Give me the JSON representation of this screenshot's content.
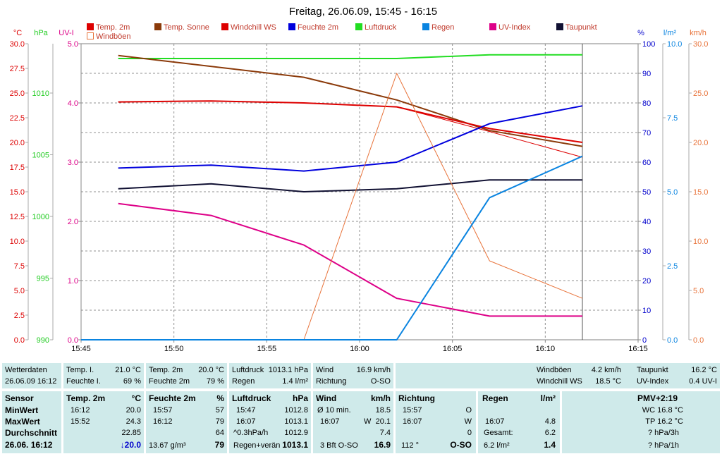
{
  "chart_data": {
    "type": "line",
    "title": "Freitag, 26.06.09, 15:45 - 16:15",
    "x_ticks": [
      "15:45",
      "15:50",
      "15:55",
      "16:00",
      "16:05",
      "16:10",
      "16:15"
    ],
    "x_range": [
      "15:45",
      "16:15"
    ],
    "grid": true,
    "legend": [
      {
        "name": "Temp. 2m",
        "color": "#dd0000",
        "style": "box"
      },
      {
        "name": "Temp. Sonne",
        "color": "#8b3a0a",
        "style": "box"
      },
      {
        "name": "Windchill WS",
        "color": "#dd0000",
        "style": "box"
      },
      {
        "name": "Feuchte 2m",
        "color": "#0000dd",
        "style": "box"
      },
      {
        "name": "Luftdruck",
        "color": "#22dd22",
        "style": "box"
      },
      {
        "name": "Regen",
        "color": "#0a84e0",
        "style": "box"
      },
      {
        "name": "UV-Index",
        "color": "#dd0088",
        "style": "box"
      },
      {
        "name": "Taupunkt",
        "color": "#111133",
        "style": "box"
      },
      {
        "name": "Windböen",
        "color": "#e8733a",
        "style": "outline"
      }
    ],
    "axes": {
      "temp": {
        "label": "°C",
        "color": "#dd0000",
        "min": 0,
        "max": 30,
        "ticks": [
          "30.0",
          "27.5",
          "25.0",
          "22.5",
          "20.0",
          "17.5",
          "15.0",
          "12.5",
          "10.0",
          "7.5",
          "5.0",
          "2.5",
          "0.0"
        ]
      },
      "pressure": {
        "label": "hPa",
        "color": "#22cc22",
        "min": 990,
        "max": 1014,
        "ticks": [
          "1010",
          "1005",
          "1000",
          "995",
          "990"
        ]
      },
      "uv": {
        "label": "UV-I",
        "color": "#dd0088",
        "min": 0,
        "max": 5,
        "ticks": [
          "5.0",
          "4.0",
          "3.0",
          "2.0",
          "1.0",
          "0.0"
        ]
      },
      "humidity": {
        "label": "%",
        "color": "#0000cc",
        "min": 0,
        "max": 100,
        "ticks": [
          "100",
          "90",
          "80",
          "70",
          "60",
          "50",
          "40",
          "30",
          "20",
          "10",
          "0"
        ]
      },
      "rain": {
        "label": "l/m²",
        "color": "#0a84e0",
        "min": 0,
        "max": 10,
        "ticks": [
          "10.0",
          "7.5",
          "5.0",
          "2.5",
          "0.0"
        ]
      },
      "wind": {
        "label": "km/h",
        "color": "#e8733a",
        "min": 0,
        "max": 30,
        "ticks": [
          "30.0",
          "25.0",
          "20.0",
          "15.0",
          "10.0",
          "5.0",
          "0.0"
        ]
      }
    },
    "marker_time": "16:12",
    "series": [
      {
        "name": "Luftdruck",
        "axis": "pressure",
        "color": "#22dd22",
        "width": 2,
        "x": [
          "15:47",
          "15:57",
          "16:02",
          "16:07",
          "16:12"
        ],
        "y": [
          1012.8,
          1012.8,
          1012.8,
          1013.1,
          1013.1
        ]
      },
      {
        "name": "Temp. Sonne",
        "axis": "temp",
        "color": "#8b3a0a",
        "width": 2,
        "x": [
          "15:47",
          "15:57",
          "16:02",
          "16:07",
          "16:12"
        ],
        "y": [
          28.8,
          26.6,
          24.3,
          21.2,
          19.6
        ]
      },
      {
        "name": "Temp. 2m",
        "axis": "temp",
        "color": "#dd0000",
        "width": 2,
        "x": [
          "15:47",
          "15:52",
          "15:57",
          "16:02",
          "16:07",
          "16:12"
        ],
        "y": [
          24.1,
          24.2,
          24.0,
          23.6,
          21.4,
          20.0
        ]
      },
      {
        "name": "Windchill WS",
        "axis": "temp",
        "color": "#dd0000",
        "width": 1,
        "x": [
          "15:47",
          "15:52",
          "15:57",
          "16:02",
          "16:07",
          "16:12"
        ],
        "y": [
          24.1,
          24.2,
          24.0,
          23.6,
          21.1,
          18.5
        ]
      },
      {
        "name": "Feuchte 2m",
        "axis": "humidity",
        "color": "#0000dd",
        "width": 2,
        "x": [
          "15:47",
          "15:52",
          "15:57",
          "16:02",
          "16:07",
          "16:12"
        ],
        "y": [
          58,
          59,
          57,
          60,
          73,
          79
        ]
      },
      {
        "name": "Taupunkt",
        "axis": "temp",
        "color": "#111133",
        "width": 2,
        "x": [
          "15:47",
          "15:52",
          "15:57",
          "16:02",
          "16:07",
          "16:12"
        ],
        "y": [
          15.3,
          15.8,
          15.0,
          15.3,
          16.2,
          16.2
        ]
      },
      {
        "name": "UV-Index",
        "axis": "uv",
        "color": "#dd0088",
        "width": 2,
        "x": [
          "15:47",
          "15:52",
          "15:57",
          "16:02",
          "16:07",
          "16:12"
        ],
        "y": [
          2.3,
          2.1,
          1.6,
          0.7,
          0.4,
          0.4
        ]
      },
      {
        "name": "Windböen",
        "axis": "wind",
        "color": "#e8733a",
        "width": 1,
        "x": [
          "15:57",
          "16:02",
          "16:07",
          "16:12"
        ],
        "y": [
          0,
          27.0,
          8.0,
          4.2
        ]
      },
      {
        "name": "Regen",
        "axis": "rain",
        "color": "#0a84e0",
        "width": 2,
        "x": [
          "15:45",
          "16:02",
          "16:07",
          "16:12"
        ],
        "y": [
          0,
          0,
          4.8,
          6.2
        ]
      }
    ]
  },
  "summary": {
    "r1": {
      "wetterdaten": "Wetterdaten",
      "datetime": "26.06.09 16:12",
      "temp_i_label": "Temp. I.",
      "temp_i_value": "21.0 °C",
      "feuchte_i_label": "Feuchte I.",
      "feuchte_i_value": "69 %",
      "temp2m_label": "Temp. 2m",
      "temp2m_value": "20.0 °C",
      "feuchte2m_label": "Feuchte 2m",
      "feuchte2m_value": "79 %",
      "luftdruck_label": "Luftdruck",
      "luftdruck_value": "1013.1 hPa",
      "regen_label": "Regen",
      "regen_value": "1.4 l/m²",
      "wind_label": "Wind",
      "wind_value": "16.9 km/h",
      "richtung_label": "Richtung",
      "richtung_value": "O-SO",
      "windboeen_label": "Windböen",
      "windboeen_value": "4.2 km/h",
      "windchill_label": "Windchill WS",
      "windchill_value": "18.5 °C",
      "taupunkt_label": "Taupunkt",
      "taupunkt_value": "16.2 °C",
      "uvindex_label": "UV-Index",
      "uvindex_value": "0.4 UV-I"
    },
    "r2": {
      "sensor": {
        "title": "Sensor",
        "rows": [
          "MinWert",
          "MaxWert",
          "Durchschnitt"
        ],
        "date": "26.06. 16:12"
      },
      "temp": {
        "title": "Temp. 2m",
        "unit": "°C",
        "min_time": "16:12",
        "min_val": "20.0",
        "max_time": "15:52",
        "max_val": "24.3",
        "avg": "22.85",
        "current": "↓20.0"
      },
      "feuchte": {
        "title": "Feuchte 2m",
        "unit": "%",
        "min_time": "15:57",
        "min_val": "57",
        "max_time": "16:12",
        "max_val": "79",
        "avg": "64",
        "abs": "13.67 g/m³",
        "current": "79"
      },
      "luftdruck": {
        "title": "Luftdruck",
        "unit": "hPa",
        "min_time": "15:47",
        "min_val": "1012.8",
        "max_time": "16:07",
        "max_val": "1013.1",
        "trend": "^0.3hPa/h",
        "avg": "1012.9",
        "regen_label": "Regen+verän",
        "current": "1013.1"
      },
      "wind": {
        "title": "Wind",
        "unit": "km/h",
        "avg10_label": "Ø 10 min.",
        "avg10_val": "18.5",
        "max_time": "16:07",
        "max_dir": "W",
        "max_val": "20.1",
        "avg": "7.4",
        "bft": "3 Bft O-SO",
        "current": "16.9"
      },
      "richtung": {
        "title": "Richtung",
        "min_time": "15:57",
        "min_val": "O",
        "max_time": "16:07",
        "max_val": "W",
        "avg": "0",
        "deg": "112 °",
        "current": "O-SO"
      },
      "regen": {
        "title": "Regen",
        "unit": "l/m²",
        "max_time": "16:07",
        "max_val": "4.8",
        "gesamt_label": "Gesamt:",
        "gesamt_val": "6.2",
        "daily": "6.2 l/m²",
        "current": "1.4"
      },
      "pmv": {
        "title": "PMV+2:19",
        "wc": "WC 16.8 °C",
        "tp": "TP 16.2 °C",
        "h3": "? hPa/3h",
        "h1": "? hPa/1h"
      }
    }
  }
}
